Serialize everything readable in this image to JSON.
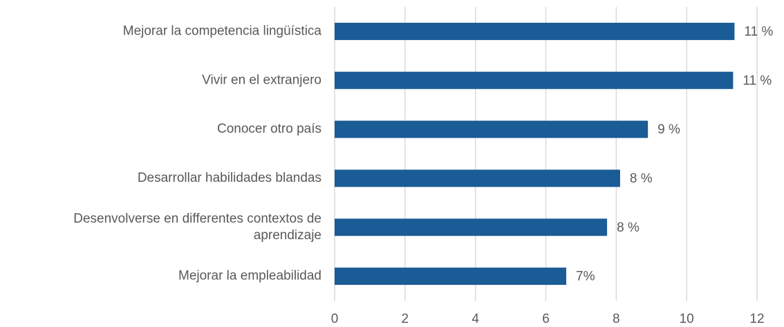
{
  "chart_data": {
    "type": "bar",
    "orientation": "horizontal",
    "categories": [
      "Mejorar la competencia lingüística",
      "Vivir en el extranjero",
      "Conocer otro país",
      "Desarrollar habilidades blandas",
      "Desenvolverse en differentes contextos de aprendizaje",
      "Mejorar la empleabilidad"
    ],
    "values": [
      11.36,
      11.32,
      8.9,
      8.11,
      7.74,
      6.58
    ],
    "value_labels": [
      "11 %",
      "11 %",
      "9 %",
      "8 %",
      "8 %",
      "7%"
    ],
    "color": "#1a5c96",
    "xlim": [
      0,
      12
    ],
    "xticks": [
      0,
      2,
      4,
      6,
      8,
      10,
      12
    ],
    "grid": true
  }
}
